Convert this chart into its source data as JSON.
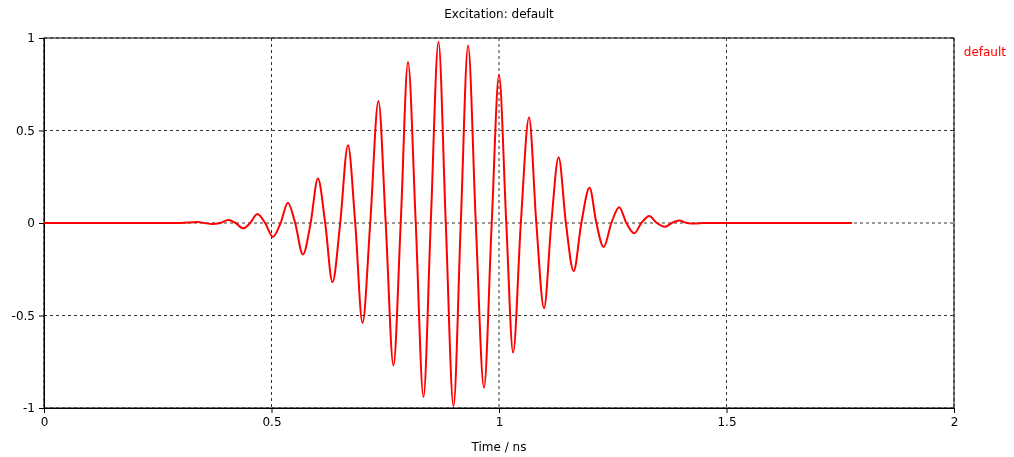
{
  "chart_data": {
    "type": "line",
    "title": "Excitation: default",
    "xlabel": "Time / ns",
    "xlim": [
      0,
      2
    ],
    "xticks": [
      0,
      0.5,
      1,
      1.5,
      2
    ],
    "ylim": [
      -1,
      1
    ],
    "yticks": [
      -1,
      -0.5,
      0,
      0.5,
      1
    ],
    "grid": true,
    "legend": "right",
    "line_style": "solid",
    "marker": "none",
    "series": [
      {
        "name": "default",
        "color": "#ff0000",
        "x": [
          0,
          0.3,
          0.337,
          0.353,
          0.369,
          0.387,
          0.405,
          0.421,
          0.438,
          0.453,
          0.469,
          0.486,
          0.503,
          0.52,
          0.536,
          0.552,
          0.569,
          0.586,
          0.602,
          0.618,
          0.634,
          0.651,
          0.668,
          0.684,
          0.7,
          0.717,
          0.735,
          0.751,
          0.768,
          0.784,
          0.8,
          0.817,
          0.834,
          0.85,
          0.867,
          0.883,
          0.9,
          0.916,
          0.932,
          0.949,
          0.967,
          0.984,
          1.0,
          1.016,
          1.031,
          1.048,
          1.066,
          1.082,
          1.099,
          1.115,
          1.131,
          1.147,
          1.164,
          1.181,
          1.199,
          1.214,
          1.23,
          1.247,
          1.264,
          1.28,
          1.297,
          1.313,
          1.33,
          1.347,
          1.365,
          1.38,
          1.396,
          1.413,
          1.43,
          1.45,
          1.776
        ],
        "values": [
          0,
          0,
          0.005,
          0,
          -0.005,
          0,
          0.016,
          0,
          -0.029,
          0,
          0.049,
          0,
          -0.075,
          0,
          0.11,
          0,
          -0.17,
          0,
          0.24,
          0,
          -0.32,
          0,
          0.42,
          0,
          -0.54,
          0,
          0.66,
          0,
          -0.77,
          0,
          0.87,
          0,
          -0.94,
          0,
          0.98,
          0,
          -0.99,
          0,
          0.96,
          0,
          -0.89,
          0,
          0.8,
          0,
          -0.7,
          0,
          0.57,
          0,
          -0.46,
          0,
          0.355,
          0,
          -0.26,
          0,
          0.19,
          0,
          -0.13,
          0,
          0.085,
          0,
          -0.056,
          0,
          0.038,
          0,
          -0.02,
          0,
          0.013,
          0,
          -0.003,
          0,
          0
        ]
      }
    ]
  }
}
